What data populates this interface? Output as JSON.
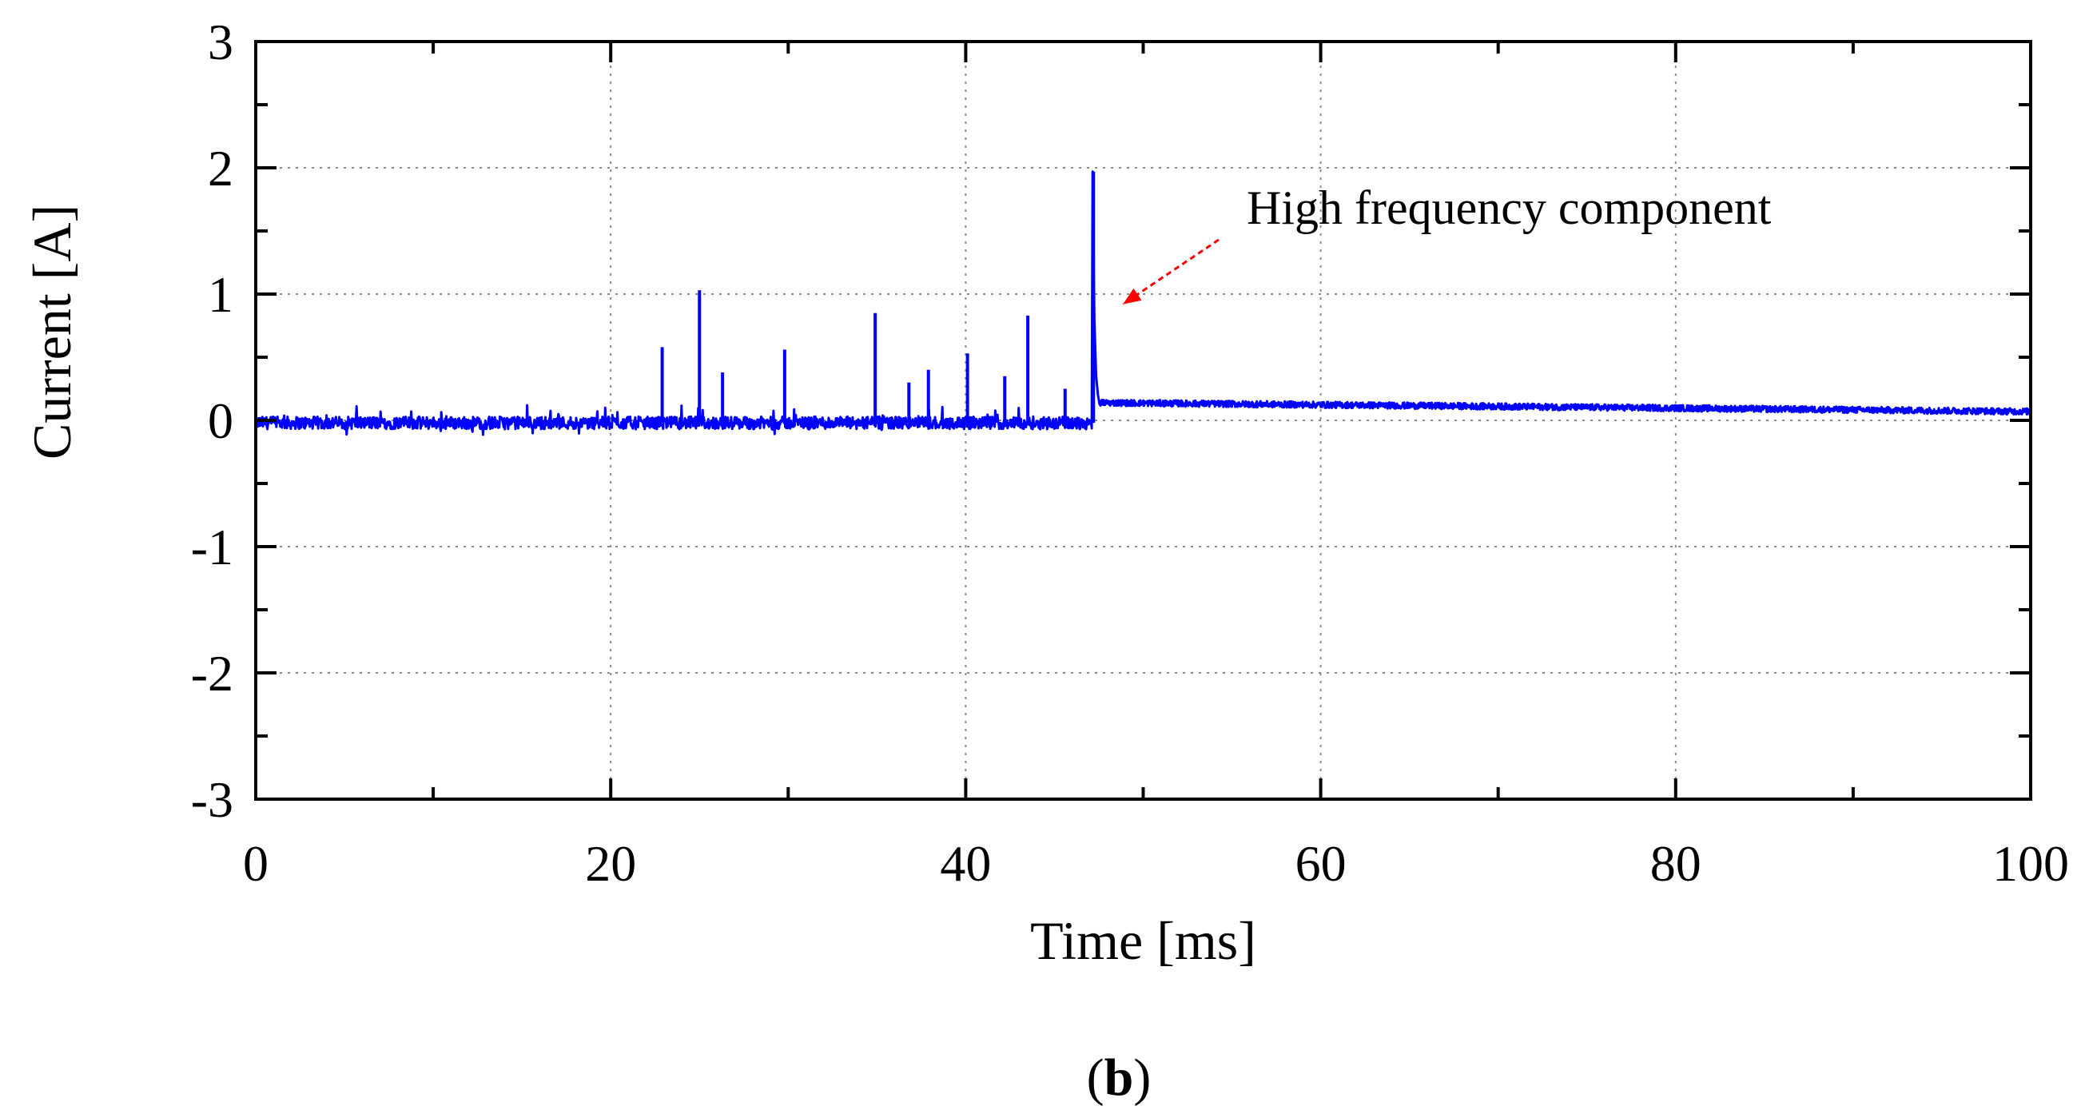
{
  "chart_data": {
    "type": "line",
    "title": "",
    "xlabel": "Time [ms]",
    "ylabel": "Current [A]",
    "xlim": [
      0,
      100
    ],
    "ylim": [
      -3,
      3
    ],
    "x_ticks": [
      0,
      20,
      40,
      60,
      80,
      100
    ],
    "y_ticks": [
      3,
      2,
      1,
      0,
      -1,
      -2,
      -3
    ],
    "grid": true,
    "series": [
      {
        "name": "current",
        "color": "#0000ff",
        "baseline_before": {
          "x_range": [
            0,
            47.1
          ],
          "level": -0.02,
          "noise": 0.05
        },
        "baseline_after": {
          "x_range": [
            47.5,
            100
          ],
          "level_start": 0.14,
          "level_end": 0.07,
          "noise": 0.025
        },
        "spikes": [
          {
            "x": 22.9,
            "y": 0.58
          },
          {
            "x": 25.0,
            "y": 1.03
          },
          {
            "x": 26.3,
            "y": 0.38
          },
          {
            "x": 29.8,
            "y": 0.56
          },
          {
            "x": 34.9,
            "y": 0.85
          },
          {
            "x": 36.8,
            "y": 0.3
          },
          {
            "x": 37.9,
            "y": 0.4
          },
          {
            "x": 40.1,
            "y": 0.53
          },
          {
            "x": 42.2,
            "y": 0.35
          },
          {
            "x": 43.5,
            "y": 0.83
          },
          {
            "x": 45.6,
            "y": 0.25
          },
          {
            "x": 47.2,
            "y": 1.97
          }
        ]
      }
    ],
    "annotations": [
      {
        "text": "High frequency component",
        "arrow_to": {
          "x": 48.5,
          "y": 0.92
        },
        "arrow_color": "#ff0000"
      }
    ]
  },
  "panel_label": {
    "open": "(",
    "letter": "b",
    "close": ")"
  }
}
